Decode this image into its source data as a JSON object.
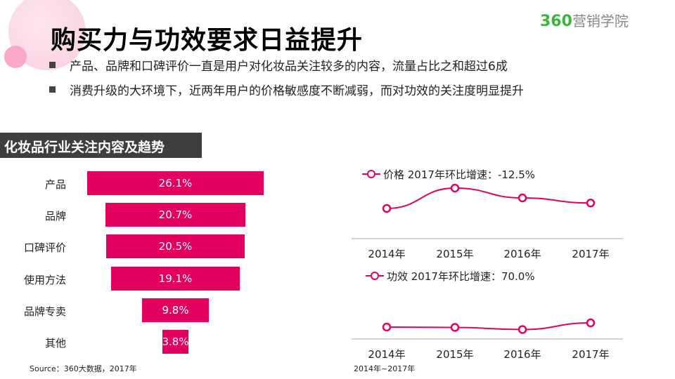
{
  "header": {
    "title": "购买力与功效要求日益提升",
    "logo_num": "360",
    "logo_text": "营销学院"
  },
  "bullets": [
    "产品、品牌和口碑评价一直是用户对化妆品关注较多的内容，流量占比之和超过6成",
    "消费升级的大环境下，近两年用户的价格敏感度不断减弱，而对功效的关注度明显提升"
  ],
  "section_title": "化妆品行业关注内容及趋势",
  "source_left": "Source：360大数据，2017年",
  "source_right": "2014年~2017年",
  "colors": {
    "accent": "#e4005e",
    "logo_green": "#3cb53a",
    "section_bg": "#3e3e3e"
  },
  "chart_data": [
    {
      "type": "bar",
      "orientation": "horizontal-funnel",
      "categories": [
        "产品",
        "品牌",
        "口碑评价",
        "使用方法",
        "品牌专卖",
        "其他"
      ],
      "values": [
        26.1,
        20.7,
        20.5,
        19.1,
        9.8,
        3.8
      ],
      "labels": [
        "26.1%",
        "20.7%",
        "20.5%",
        "19.1%",
        "9.8%",
        "3.8%"
      ],
      "grid": false
    },
    {
      "type": "line",
      "legend": "价格 2017年环比增速：-12.5%",
      "categories": [
        "2014年",
        "2015年",
        "2016年",
        "2017年"
      ],
      "values": [
        43,
        72,
        58,
        50.75
      ],
      "axis_values_shown": false,
      "grid": false
    },
    {
      "type": "line",
      "legend": "功效 2017年环比增速：70.0%",
      "categories": [
        "2014年",
        "2015年",
        "2016年",
        "2017年"
      ],
      "values": [
        17,
        16.5,
        13.5,
        22.95
      ],
      "axis_values_shown": false,
      "grid": false
    }
  ]
}
